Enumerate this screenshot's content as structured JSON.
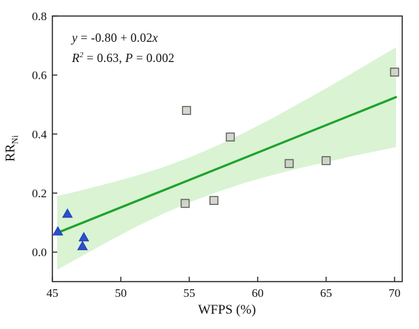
{
  "chart_data": {
    "type": "scatter",
    "title": "",
    "xlabel": "WFPS (%)",
    "ylabel_base": "RR",
    "ylabel_sub": "Ni",
    "xlim": [
      45,
      70.56
    ],
    "ylim": [
      -0.1,
      0.8
    ],
    "grid": false,
    "legend": "none",
    "xtick_values": [
      45,
      50,
      55,
      60,
      65,
      70
    ],
    "xtick_labels": [
      "45",
      "50",
      "55",
      "60",
      "65",
      "70"
    ],
    "ytick_values": [
      0.0,
      0.2,
      0.4,
      0.6,
      0.8
    ],
    "ytick_labels": [
      "0.0",
      "0.2",
      "0.4",
      "0.6",
      "0.8"
    ],
    "annotation": {
      "eq_y": "y",
      "eq_mid": " = -0.80 + 0.02",
      "eq_x": "x",
      "r_sym": "R",
      "r_sup": "2",
      "r_rest": " = 0.63, ",
      "p_sym": "P",
      "p_rest": " = 0.002"
    },
    "series": [
      {
        "name": "triangles",
        "marker": "triangle",
        "fill": "#2b50c8",
        "stroke": "#1d3eb5",
        "points": [
          [
            45.4,
            0.07
          ],
          [
            46.1,
            0.13
          ],
          [
            47.3,
            0.05
          ],
          [
            47.2,
            0.02
          ]
        ]
      },
      {
        "name": "squares",
        "marker": "square",
        "fill": "#c7cabf",
        "stroke": "#5c5c5c",
        "points": [
          [
            54.7,
            0.165
          ],
          [
            54.8,
            0.48
          ],
          [
            56.8,
            0.175
          ],
          [
            58.0,
            0.39
          ],
          [
            62.3,
            0.3
          ],
          [
            65.0,
            0.31
          ],
          [
            70.0,
            0.61
          ]
        ]
      }
    ],
    "regression_line": {
      "color": "#1ea32d",
      "x": [
        45.35,
        70.1
      ],
      "y": [
        0.065,
        0.525
      ]
    },
    "confidence_band": {
      "color": "#daf3d3",
      "x": [
        45.35,
        47,
        49,
        51,
        53,
        55.2,
        57,
        59,
        61,
        63,
        65,
        67,
        70.1
      ],
      "lower": [
        -0.06,
        -0.017,
        0.034,
        0.083,
        0.128,
        0.172,
        0.203,
        0.234,
        0.26,
        0.284,
        0.305,
        0.326,
        0.356
      ],
      "upper": [
        0.19,
        0.208,
        0.232,
        0.257,
        0.286,
        0.324,
        0.36,
        0.404,
        0.452,
        0.503,
        0.555,
        0.609,
        0.694
      ]
    },
    "frame_color": "#2b2b2b",
    "text_color": "#111111"
  }
}
